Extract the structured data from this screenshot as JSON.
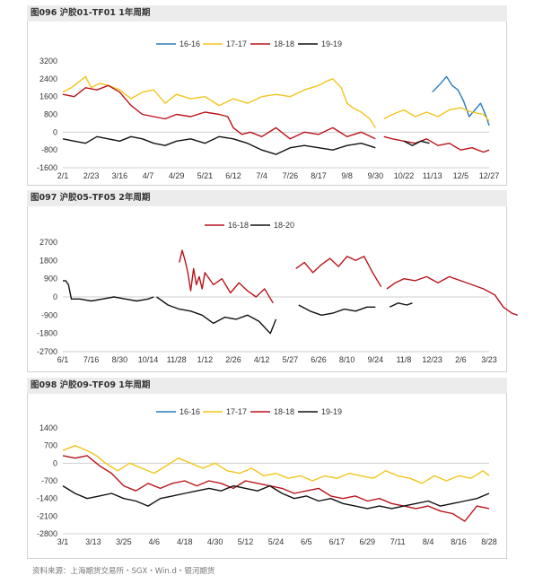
{
  "source": "资料来源：上海期货交易所・SGX・Win.d・银河期货",
  "colors": {
    "blue": "#2a7ab8",
    "yellow": "#f2c51c",
    "red": "#b8141b",
    "black": "#111111",
    "axis": "#cfcfcf",
    "title_bg": "#ececec"
  },
  "chart_data": [
    {
      "id": "c1",
      "title": "图096 沪胶01-TF01 1年周期",
      "type": "line",
      "ylim": [
        -1600,
        3200
      ],
      "yticks": [
        3200,
        2400,
        1600,
        800,
        0,
        -800,
        -1600
      ],
      "xticks": [
        "2/1",
        "2/23",
        "3/16",
        "4/7",
        "4/29",
        "5/21",
        "6/12",
        "7/4",
        "7/26",
        "8/17",
        "9/8",
        "9/30",
        "10/22",
        "11/13",
        "12/5",
        "12/27"
      ],
      "legend": [
        "16-16",
        "17-17",
        "18-18",
        "19-19"
      ],
      "series": [
        {
          "name": "16-16",
          "color": "blue",
          "x": [
            13.0,
            13.2,
            13.4,
            13.6,
            13.8,
            14.0,
            14.2,
            14.4,
            14.6,
            14.8,
            15.0
          ],
          "values": [
            null,
            null,
            null,
            null,
            null,
            null,
            null,
            null,
            null,
            null,
            null
          ],
          "segments": [
            {
              "x": [
                13.0,
                13.3,
                13.5,
                13.7,
                13.9,
                14.1,
                14.3,
                14.5,
                14.7,
                14.9,
                15.0
              ],
              "values": [
                1800,
                2200,
                2500,
                2100,
                1900,
                1400,
                700,
                1000,
                1300,
                700,
                300
              ]
            }
          ]
        },
        {
          "name": "17-17",
          "color": "yellow",
          "segments": [
            {
              "x": [
                0.0,
                0.3,
                0.6,
                0.8,
                1.0,
                1.3,
                1.6,
                2.0,
                2.4,
                2.8,
                3.2,
                3.6,
                4.0,
                4.5,
                5.0,
                5.5,
                6.0,
                6.5,
                7.0,
                7.5,
                8.0,
                8.5,
                9.0,
                9.3,
                9.5,
                9.8,
                10.0,
                10.2,
                10.5,
                10.8,
                11.0
              ],
              "values": [
                1800,
                2000,
                2300,
                2500,
                2000,
                2200,
                2100,
                1900,
                1500,
                1800,
                1900,
                1300,
                1700,
                1500,
                1600,
                1200,
                1500,
                1300,
                1600,
                1700,
                1600,
                1900,
                2100,
                2300,
                2400,
                2000,
                1300,
                1100,
                900,
                600,
                200
              ]
            },
            {
              "x": [
                11.3,
                11.6,
                12.0,
                12.4,
                12.8,
                13.2,
                13.6,
                14.0,
                14.4,
                14.8,
                15.0
              ],
              "values": [
                600,
                800,
                1000,
                700,
                900,
                700,
                1000,
                1100,
                900,
                800,
                500
              ]
            }
          ]
        },
        {
          "name": "18-18",
          "color": "red",
          "segments": [
            {
              "x": [
                0.0,
                0.4,
                0.8,
                1.2,
                1.6,
                2.0,
                2.4,
                2.8,
                3.2,
                3.6,
                4.0,
                4.5,
                5.0,
                5.5,
                5.8,
                6.0,
                6.3,
                6.6,
                7.0,
                7.5,
                8.0,
                8.5,
                9.0,
                9.5,
                10.0,
                10.5,
                11.0
              ],
              "values": [
                1700,
                1600,
                2000,
                1900,
                2100,
                1800,
                1200,
                800,
                700,
                600,
                800,
                700,
                900,
                800,
                700,
                200,
                -100,
                0,
                -200,
                200,
                -300,
                0,
                -100,
                200,
                -200,
                0,
                -300
              ]
            },
            {
              "x": [
                11.3,
                11.6,
                12.0,
                12.4,
                12.8,
                13.2,
                13.6,
                14.0,
                14.4,
                14.8,
                15.0
              ],
              "values": [
                -200,
                -300,
                -400,
                -500,
                -300,
                -600,
                -500,
                -800,
                -700,
                -900,
                -800
              ]
            }
          ]
        },
        {
          "name": "19-19",
          "color": "black",
          "segments": [
            {
              "x": [
                0.0,
                0.4,
                0.8,
                1.2,
                1.6,
                2.0,
                2.4,
                2.8,
                3.2,
                3.6,
                4.0,
                4.5,
                5.0,
                5.5,
                6.0,
                6.5,
                7.0,
                7.5,
                8.0,
                8.5,
                9.0,
                9.5,
                10.0,
                10.5,
                11.0
              ],
              "values": [
                -300,
                -400,
                -500,
                -200,
                -300,
                -400,
                -200,
                -300,
                -500,
                -600,
                -400,
                -300,
                -500,
                -200,
                -300,
                -500,
                -800,
                -1000,
                -700,
                -600,
                -700,
                -800,
                -600,
                -500,
                -700
              ]
            },
            {
              "x": [
                12.0,
                12.3,
                12.6,
                12.9
              ],
              "values": [
                -400,
                -600,
                -400,
                -500
              ]
            }
          ]
        }
      ]
    },
    {
      "id": "c2",
      "title": "图097 沪胶05-TF05 2年周期",
      "type": "line",
      "ylim": [
        -2700,
        2700
      ],
      "yticks": [
        2700,
        1800,
        900,
        0,
        -900,
        -1800,
        -2700
      ],
      "xticks": [
        "6/1",
        "7/16",
        "8/30",
        "10/14",
        "11/28",
        "1/12",
        "2/26",
        "4/12",
        "5/27",
        "6/26",
        "8/10",
        "9/24",
        "11/8",
        "12/23",
        "2/6",
        "3/23"
      ],
      "legend": [
        "16-18",
        "18-20"
      ],
      "series": [
        {
          "name": "16-18",
          "color": "red",
          "segments": [
            {
              "x": [
                4.1,
                4.2,
                4.3,
                4.4,
                4.5,
                4.6,
                4.7,
                4.8,
                4.9,
                5.0,
                5.3,
                5.6,
                5.9,
                6.2,
                6.5,
                6.8,
                7.1,
                7.4
              ],
              "values": [
                1700,
                2300,
                1800,
                1200,
                300,
                1400,
                600,
                1000,
                400,
                1200,
                600,
                900,
                200,
                700,
                300,
                0,
                400,
                -300
              ]
            },
            {
              "x": [
                8.2,
                8.5,
                8.8,
                9.1,
                9.4,
                9.7,
                10.0,
                10.3,
                10.6,
                10.9,
                11.2
              ],
              "values": [
                1400,
                1700,
                1200,
                1600,
                1900,
                1500,
                2000,
                1800,
                2000,
                1200,
                500
              ]
            },
            {
              "x": [
                11.4,
                11.7,
                12.0,
                12.4,
                12.8,
                13.2,
                13.6,
                14.0,
                14.4,
                14.8,
                15.2,
                15.5,
                15.8,
                16.0
              ],
              "values": [
                400,
                700,
                900,
                800,
                1000,
                700,
                1000,
                800,
                600,
                400,
                100,
                -500,
                -800,
                -900
              ]
            }
          ]
        },
        {
          "name": "18-20",
          "color": "black",
          "segments": [
            {
              "x": [
                0.0,
                0.1,
                0.2,
                0.3,
                0.6,
                1.0,
                1.4,
                1.8,
                2.2,
                2.6,
                3.0,
                3.2
              ],
              "values": [
                800,
                800,
                600,
                -100,
                -100,
                -200,
                -100,
                0,
                -100,
                -200,
                -100,
                0
              ]
            },
            {
              "x": [
                3.3,
                3.7,
                4.1,
                4.5,
                4.9,
                5.3,
                5.7,
                6.1,
                6.5,
                6.9,
                7.3,
                7.5
              ],
              "values": [
                0,
                -400,
                -600,
                -700,
                -900,
                -1300,
                -1000,
                -1100,
                -900,
                -1200,
                -1800,
                -1100
              ]
            },
            {
              "x": [
                8.3,
                8.7,
                9.1,
                9.5,
                9.9,
                10.3,
                10.7,
                11.0
              ],
              "values": [
                -400,
                -700,
                -900,
                -800,
                -600,
                -700,
                -500,
                -500
              ]
            },
            {
              "x": [
                11.5,
                11.8,
                12.1,
                12.3
              ],
              "values": [
                -500,
                -300,
                -400,
                -300
              ]
            }
          ]
        }
      ]
    },
    {
      "id": "c3",
      "title": "图098 沪胶09-TF09 1年周期",
      "type": "line",
      "ylim": [
        -2800,
        1400
      ],
      "yticks": [
        1400,
        700,
        0,
        -700,
        -1400,
        -2100,
        -2800
      ],
      "xticks": [
        "3/1",
        "3/13",
        "3/25",
        "4/6",
        "4/18",
        "4/30",
        "5/12",
        "5/24",
        "6/5",
        "6/17",
        "6/29",
        "7/11",
        "8/4",
        "8/16",
        "8/28"
      ],
      "legend": [
        "16-16",
        "17-17",
        "18-18",
        "19-19"
      ],
      "series": [
        {
          "name": "17-17",
          "color": "yellow",
          "segments": [
            {
              "x": [
                0.0,
                0.4,
                0.8,
                1.1,
                1.4,
                1.8,
                2.2,
                2.6,
                3.0,
                3.4,
                3.8,
                4.2,
                4.6,
                5.0,
                5.4,
                5.8,
                6.2,
                6.6,
                7.0,
                7.4,
                7.8,
                8.2,
                8.6,
                9.0,
                9.4,
                9.8,
                10.2,
                10.6,
                11.0,
                11.4,
                11.8,
                12.2,
                12.6,
                13.0,
                13.4,
                13.8,
                14.0
              ],
              "values": [
                500,
                700,
                500,
                300,
                0,
                -300,
                0,
                -200,
                -400,
                -100,
                200,
                0,
                -200,
                0,
                -300,
                -400,
                -200,
                -500,
                -400,
                -600,
                -500,
                -700,
                -500,
                -600,
                -400,
                -500,
                -600,
                -300,
                -500,
                -600,
                -800,
                -500,
                -700,
                -500,
                -600,
                -300,
                -500
              ]
            }
          ]
        },
        {
          "name": "18-18",
          "color": "red",
          "segments": [
            {
              "x": [
                0.0,
                0.4,
                0.8,
                1.2,
                1.6,
                2.0,
                2.4,
                2.8,
                3.2,
                3.6,
                4.0,
                4.4,
                4.8,
                5.2,
                5.6,
                6.0,
                6.4,
                6.8,
                7.2,
                7.6,
                8.0,
                8.4,
                8.8,
                9.2,
                9.6,
                10.0,
                10.4,
                10.8,
                11.2,
                11.6,
                12.0,
                12.4,
                12.8,
                13.2,
                13.6,
                14.0
              ],
              "values": [
                300,
                200,
                300,
                -100,
                -400,
                -900,
                -1100,
                -800,
                -1000,
                -800,
                -700,
                -900,
                -700,
                -800,
                -1000,
                -700,
                -800,
                -900,
                -1000,
                -1200,
                -1100,
                -1000,
                -1300,
                -1400,
                -1300,
                -1500,
                -1400,
                -1600,
                -1700,
                -1800,
                -1700,
                -1900,
                -2000,
                -2300,
                -1700,
                -1800
              ]
            }
          ]
        },
        {
          "name": "19-19",
          "color": "black",
          "segments": [
            {
              "x": [
                0.0,
                0.4,
                0.8,
                1.2,
                1.6,
                2.0,
                2.4,
                2.8,
                3.2,
                3.6,
                4.0,
                4.4,
                4.8,
                5.2,
                5.6,
                6.0,
                6.4,
                6.8,
                7.2,
                7.6,
                8.0,
                8.4,
                8.8,
                9.2,
                9.6,
                10.0,
                10.4,
                10.8,
                11.2,
                11.6,
                12.0,
                12.4,
                12.8,
                13.2,
                13.6,
                14.0
              ],
              "values": [
                -900,
                -1200,
                -1400,
                -1300,
                -1200,
                -1400,
                -1500,
                -1700,
                -1400,
                -1300,
                -1200,
                -1100,
                -1000,
                -1100,
                -900,
                -1000,
                -1100,
                -900,
                -1200,
                -1400,
                -1300,
                -1500,
                -1400,
                -1600,
                -1700,
                -1800,
                -1700,
                -1800,
                -1700,
                -1600,
                -1500,
                -1700,
                -1600,
                -1500,
                -1400,
                -1200
              ]
            }
          ]
        }
      ]
    }
  ]
}
